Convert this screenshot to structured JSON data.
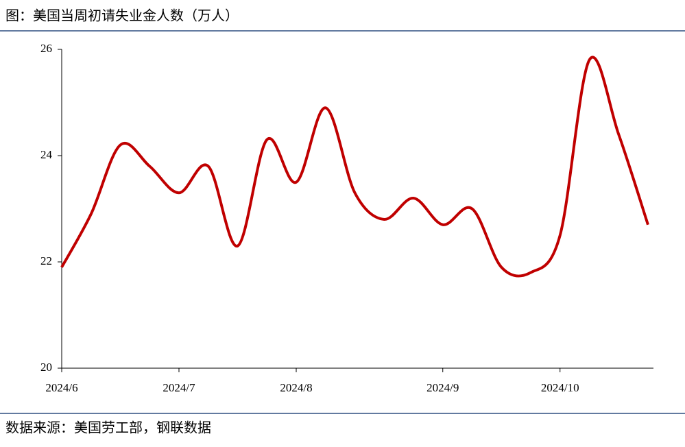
{
  "chart_data": {
    "type": "line",
    "title": "图：美国当周初请失业金人数（万人）",
    "source": "数据来源：美国劳工部，钢联数据",
    "categories": [
      "2024/6",
      null,
      null,
      null,
      "2024/7",
      null,
      null,
      null,
      "2024/8",
      null,
      null,
      null,
      null,
      "2024/9",
      null,
      null,
      null,
      "2024/10",
      null,
      null,
      null
    ],
    "values": [
      21.9,
      22.9,
      24.2,
      23.8,
      23.3,
      23.8,
      22.3,
      24.3,
      23.5,
      24.9,
      23.3,
      22.8,
      23.2,
      22.7,
      23.0,
      21.9,
      21.8,
      22.5,
      25.8,
      24.4,
      22.7
    ],
    "color": "#c00000",
    "ylim": [
      20,
      26
    ],
    "yticks": [
      20,
      22,
      24,
      26
    ],
    "grid": false
  }
}
